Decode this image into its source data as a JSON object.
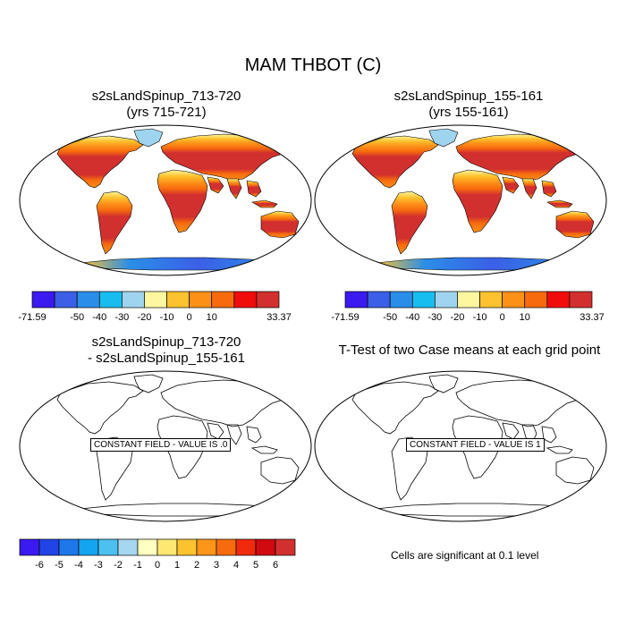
{
  "title": "MAM THBOT (C)",
  "panels": [
    {
      "id": "p1",
      "title_line1": "s2sLandSpinup_713-720",
      "title_line2": "(yrs 715-721)",
      "filled": true
    },
    {
      "id": "p2",
      "title_line1": "s2sLandSpinup_155-161",
      "title_line2": "(yrs 155-161)",
      "filled": true
    },
    {
      "id": "p3",
      "title_line1": "s2sLandSpinup_713-720",
      "title_line2": "- s2sLandSpinup_155-161",
      "filled": false,
      "constant_label": "CONSTANT FIELD - VALUE IS .0"
    },
    {
      "id": "p4",
      "title_line1": "T-Test of two Case means at each grid point",
      "title_line2": "",
      "filled": false,
      "constant_label": "CONSTANT FIELD - VALUE IS 1"
    }
  ],
  "colorbar_top": {
    "colors": [
      "#3a1af0",
      "#3b5fe6",
      "#2a8ee8",
      "#18bdf0",
      "#9fd4ef",
      "#fff7a0",
      "#fdc22f",
      "#fd9118",
      "#f76b0e",
      "#f10c0c",
      "#d2302e"
    ],
    "labels": [
      "-71.59",
      "-50",
      "-40",
      "-30",
      "-20",
      "-10",
      "0",
      "10",
      "33.37"
    ]
  },
  "colorbar_diff": {
    "colors": [
      "#3a1af0",
      "#2244e6",
      "#1d78ea",
      "#14a5f0",
      "#4cc0ef",
      "#a6d6f0",
      "#ffffc0",
      "#ffe773",
      "#fdc22f",
      "#fd9518",
      "#f76b0e",
      "#f02a0c",
      "#d00a10",
      "#d2302e"
    ],
    "labels": [
      "-6",
      "-5",
      "-4",
      "-3",
      "-2",
      "-1",
      "0",
      "1",
      "2",
      "3",
      "4",
      "5",
      "6"
    ]
  },
  "significance_note": "Cells are significant at 0.1 level"
}
